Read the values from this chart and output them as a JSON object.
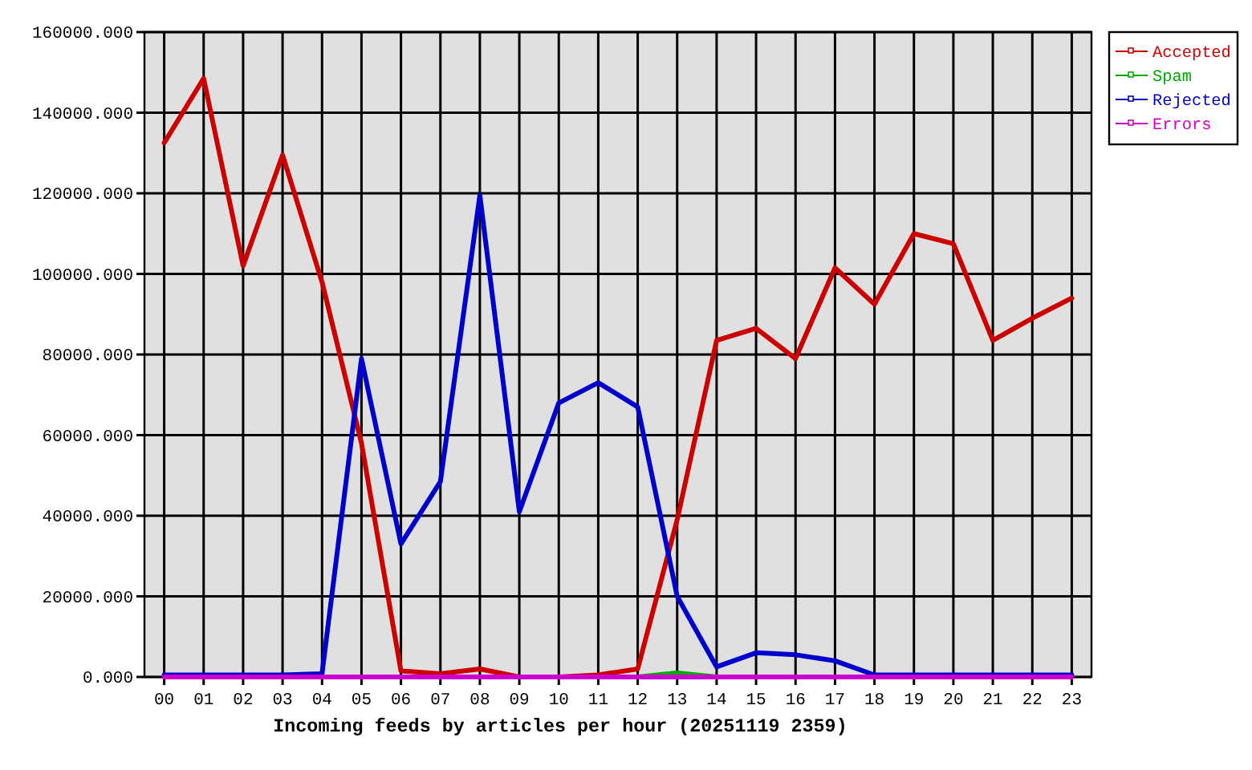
{
  "chart_data": {
    "type": "line",
    "xlabel": "Incoming feeds by articles per hour (20251119 2359)",
    "categories": [
      "00",
      "01",
      "02",
      "03",
      "04",
      "05",
      "06",
      "07",
      "08",
      "09",
      "10",
      "11",
      "12",
      "13",
      "14",
      "15",
      "16",
      "17",
      "18",
      "19",
      "20",
      "21",
      "22",
      "23"
    ],
    "series": [
      {
        "name": "Accepted",
        "color": "#cc0000",
        "values": [
          132500,
          148500,
          102000,
          129500,
          98000,
          58000,
          1500,
          800,
          2000,
          0,
          0,
          500,
          2000,
          39000,
          83500,
          86500,
          79000,
          101500,
          92500,
          110000,
          107500,
          83500,
          89000,
          94000
        ]
      },
      {
        "name": "Spam",
        "color": "#00aa00",
        "values": [
          null,
          null,
          null,
          null,
          null,
          null,
          null,
          null,
          null,
          null,
          null,
          null,
          0,
          1000,
          0,
          null,
          null,
          null,
          null,
          null,
          null,
          null,
          null,
          null
        ]
      },
      {
        "name": "Rejected",
        "color": "#0000cc",
        "values": [
          500,
          500,
          500,
          500,
          800,
          79000,
          33000,
          48500,
          119500,
          41000,
          68000,
          73000,
          67000,
          20000,
          2500,
          6000,
          5500,
          4000,
          500,
          500,
          500,
          500,
          500,
          500
        ]
      },
      {
        "name": "Errors",
        "color": "#cc00cc",
        "values": [
          0,
          0,
          0,
          0,
          0,
          0,
          0,
          0,
          0,
          0,
          0,
          0,
          0,
          0,
          0,
          0,
          0,
          0,
          0,
          0,
          0,
          0,
          0,
          0
        ]
      }
    ],
    "ylim": [
      0,
      160000
    ],
    "yticks": [
      {
        "value": 0,
        "label": "0.000"
      },
      {
        "value": 20000,
        "label": "20000.000"
      },
      {
        "value": 40000,
        "label": "40000.000"
      },
      {
        "value": 60000,
        "label": "60000.000"
      },
      {
        "value": 80000,
        "label": "80000.000"
      },
      {
        "value": 100000,
        "label": "100000.000"
      },
      {
        "value": 120000,
        "label": "120000.000"
      },
      {
        "value": 140000,
        "label": "140000.000"
      },
      {
        "value": 160000,
        "label": "160000.000"
      }
    ],
    "grid": true,
    "legend": "top right",
    "line_style": "solid"
  }
}
